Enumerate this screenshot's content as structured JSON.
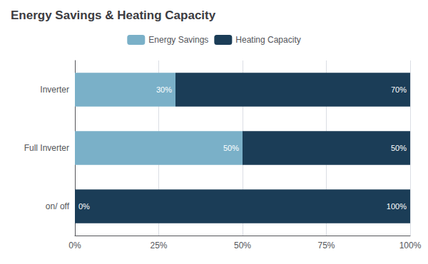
{
  "chart_data": {
    "type": "bar",
    "orientation": "horizontal",
    "stacked": true,
    "title": "Energy Savings & Heating Capacity",
    "categories": [
      "on/ off",
      "Full Inverter",
      "Inverter"
    ],
    "series": [
      {
        "name": "Energy Savings",
        "color": "#7ab0c8",
        "values": [
          0.0,
          0.5,
          0.3
        ],
        "value_labels": [
          "0%",
          "50%",
          "30%"
        ]
      },
      {
        "name": "Heating Capacity",
        "color": "#1b3d57",
        "values": [
          1.0,
          0.5,
          0.7
        ],
        "value_labels": [
          "100%",
          "50%",
          "70%"
        ]
      }
    ],
    "xlim": [
      0,
      1.0
    ],
    "xticks": [
      {
        "value": 0,
        "label": "0%"
      },
      {
        "value": 0.25,
        "label": "25%"
      },
      {
        "value": 0.5,
        "label": "50%"
      },
      {
        "value": 0.75,
        "label": "75%"
      },
      {
        "value": 1.0,
        "label": "100%"
      }
    ],
    "grid": true,
    "legend": "top",
    "data_labels": true
  }
}
